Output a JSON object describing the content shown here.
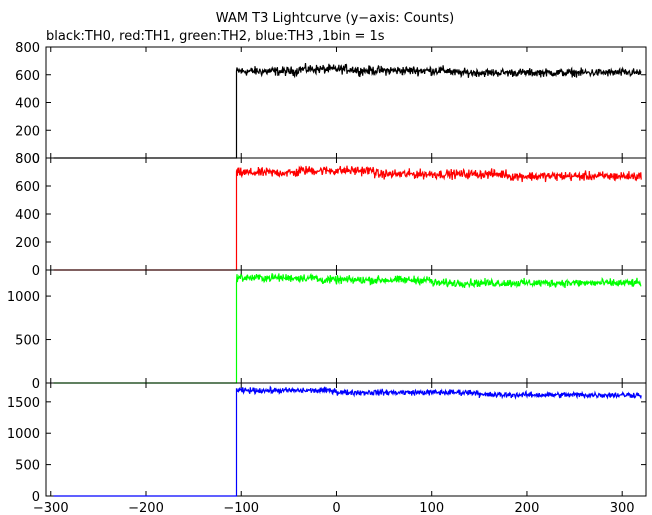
{
  "chart_data": {
    "type": "line",
    "title": "WAM T3 Lightcurve (y−axis: Counts)",
    "subtitle": "black:TH0, red:TH1, green:TH2, blue:TH3 ,1bin = 1s",
    "xlim": [
      -305,
      325
    ],
    "x_ticks": [
      -300,
      -200,
      -100,
      0,
      100,
      200,
      300
    ],
    "x_tick_labels": [
      "−300",
      "−200",
      "−100",
      "0",
      "100",
      "200",
      "300"
    ],
    "grid": false,
    "panels": [
      {
        "series_name": "TH0",
        "color": "#000000",
        "ylim": [
          0,
          800
        ],
        "y_ticks": [
          0,
          200,
          400,
          600,
          800
        ],
        "y_tick_labels": [
          "0",
          "200",
          "400",
          "600",
          "800"
        ],
        "baseline": 0,
        "onset_x": -105,
        "segments": [
          {
            "x0": -105,
            "x1": -40,
            "level": 625,
            "noise": 25
          },
          {
            "x0": -40,
            "x1": 20,
            "level": 640,
            "noise": 25
          },
          {
            "x0": 20,
            "x1": 120,
            "level": 630,
            "noise": 25
          },
          {
            "x0": 120,
            "x1": 320,
            "level": 615,
            "noise": 22
          }
        ]
      },
      {
        "series_name": "TH1",
        "color": "#ff0000",
        "ylim": [
          0,
          800
        ],
        "y_ticks": [
          0,
          200,
          400,
          600,
          800
        ],
        "y_tick_labels": [
          "0",
          "200",
          "400",
          "600",
          "800"
        ],
        "baseline": 0,
        "onset_x": -105,
        "segments": [
          {
            "x0": -105,
            "x1": -40,
            "level": 695,
            "noise": 25
          },
          {
            "x0": -40,
            "x1": 40,
            "level": 710,
            "noise": 25
          },
          {
            "x0": 40,
            "x1": 180,
            "level": 685,
            "noise": 25
          },
          {
            "x0": 180,
            "x1": 320,
            "level": 670,
            "noise": 25
          }
        ]
      },
      {
        "series_name": "TH2",
        "color": "#00ff00",
        "ylim": [
          0,
          1300
        ],
        "y_ticks": [
          0,
          500,
          1000
        ],
        "y_tick_labels": [
          "0",
          "500",
          "1000"
        ],
        "baseline": 0,
        "onset_x": -105,
        "segments": [
          {
            "x0": -105,
            "x1": -20,
            "level": 1210,
            "noise": 35
          },
          {
            "x0": -20,
            "x1": 100,
            "level": 1185,
            "noise": 35
          },
          {
            "x0": 100,
            "x1": 320,
            "level": 1150,
            "noise": 35
          }
        ]
      },
      {
        "series_name": "TH3",
        "color": "#0000ff",
        "ylim": [
          0,
          1800
        ],
        "y_ticks": [
          0,
          500,
          1000,
          1500
        ],
        "y_tick_labels": [
          "0",
          "500",
          "1000",
          "1500"
        ],
        "baseline": 0,
        "onset_x": -105,
        "segments": [
          {
            "x0": -105,
            "x1": 0,
            "level": 1680,
            "noise": 35
          },
          {
            "x0": 0,
            "x1": 150,
            "level": 1650,
            "noise": 35
          },
          {
            "x0": 150,
            "x1": 320,
            "level": 1610,
            "noise": 35
          }
        ]
      }
    ]
  }
}
